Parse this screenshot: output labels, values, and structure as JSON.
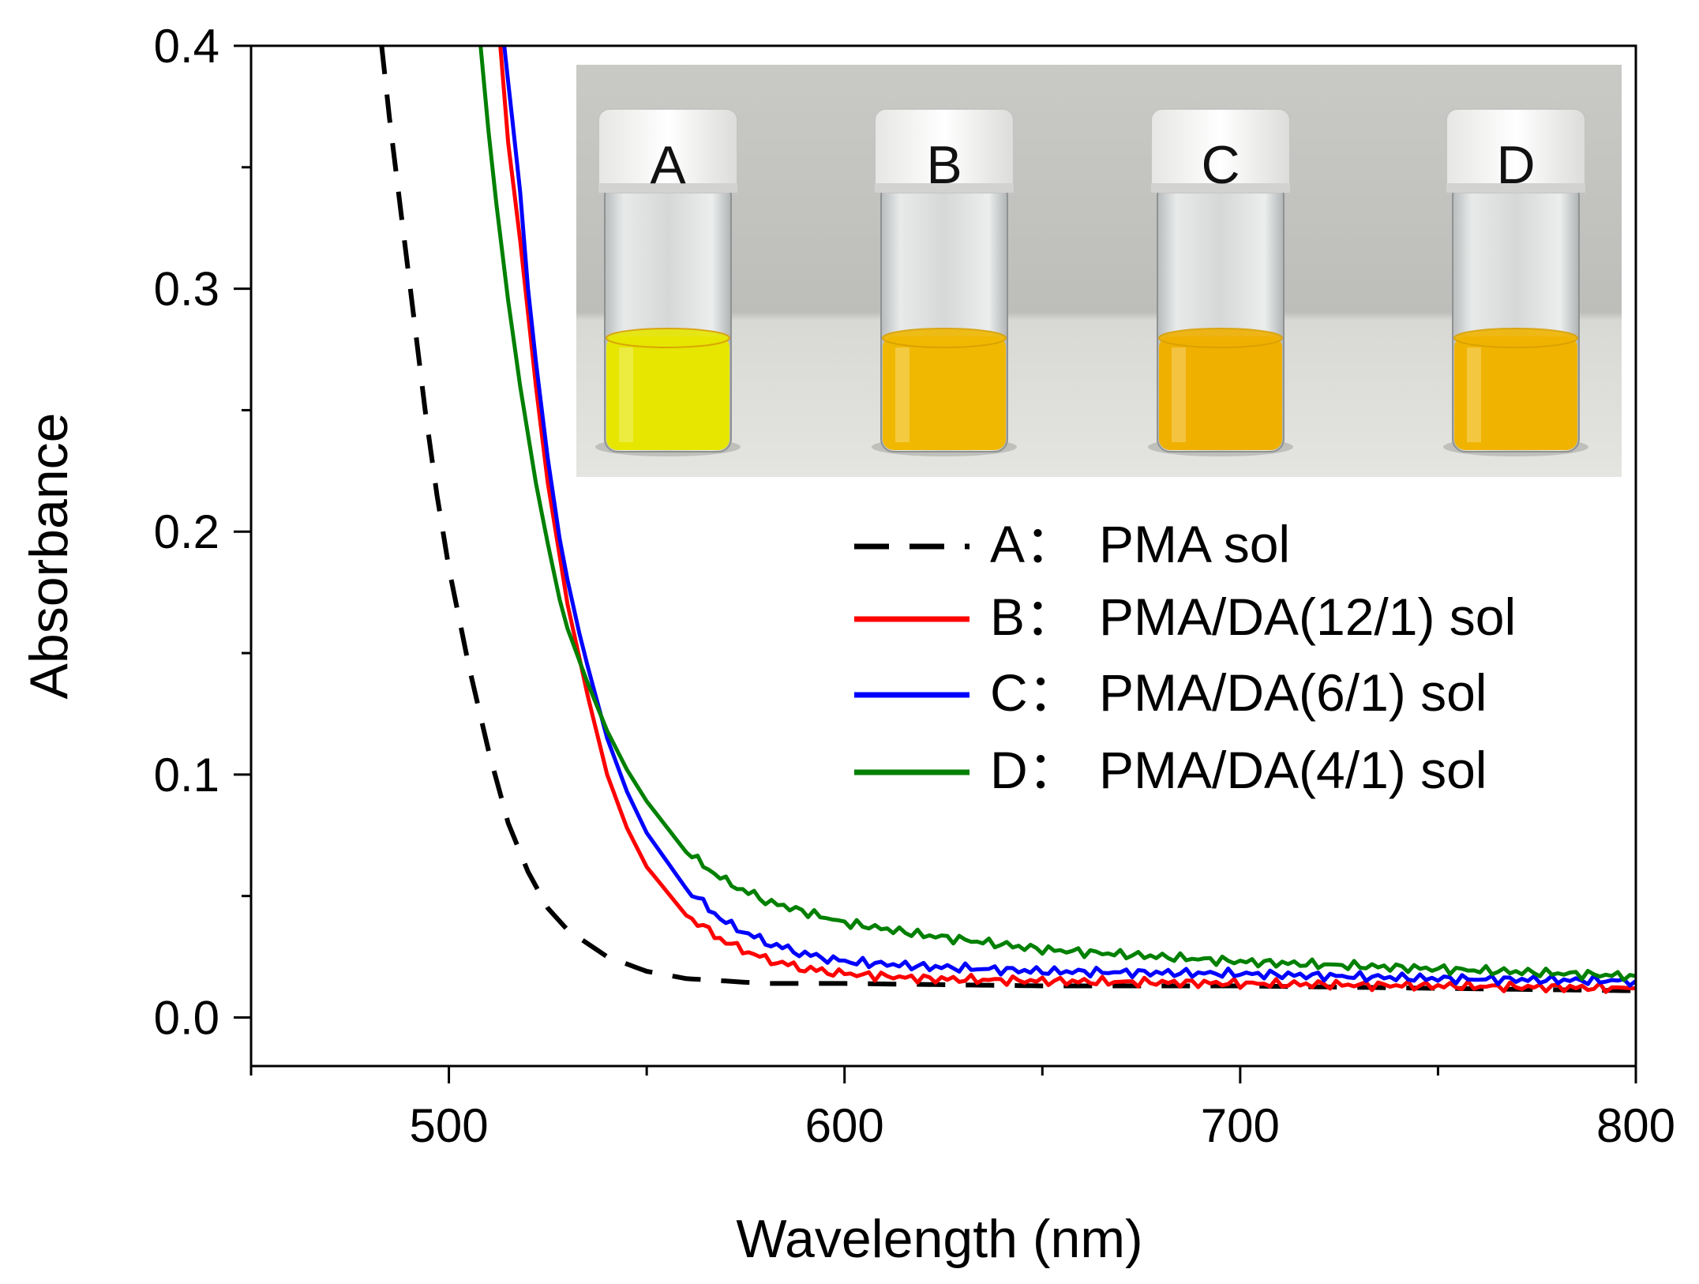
{
  "chart_data": {
    "type": "line",
    "title": "",
    "xlabel": "Wavelength (nm)",
    "ylabel": "Absorbance",
    "xlim": [
      450,
      800
    ],
    "ylim": [
      -0.02,
      0.4
    ],
    "x_ticks": [
      500,
      600,
      700,
      800
    ],
    "x_tick_labels": [
      "500",
      "600",
      "700",
      "800"
    ],
    "x_minor_ticks": [
      450,
      550,
      650,
      750
    ],
    "y_ticks": [
      0.0,
      0.1,
      0.2,
      0.3,
      0.4
    ],
    "y_tick_labels": [
      "0.0",
      "0.1",
      "0.2",
      "0.3",
      "0.4"
    ],
    "y_minor_ticks": [
      0.05,
      0.15,
      0.25,
      0.35
    ],
    "grid": false,
    "legend_position": "right",
    "series": [
      {
        "name": "A：PMA sol",
        "letter": "A：",
        "label": "PMA sol",
        "color": "#000000",
        "dashed": true,
        "x": [
          483,
          485,
          488,
          491,
          494,
          497,
          500,
          505,
          510,
          515,
          520,
          525,
          530,
          540,
          550,
          560,
          570,
          580,
          600,
          650,
          700,
          750,
          800
        ],
        "y": [
          0.4,
          0.37,
          0.33,
          0.29,
          0.25,
          0.215,
          0.185,
          0.145,
          0.11,
          0.08,
          0.06,
          0.045,
          0.036,
          0.025,
          0.019,
          0.016,
          0.015,
          0.014,
          0.014,
          0.013,
          0.013,
          0.012,
          0.011
        ]
      },
      {
        "name": "B：PMA/DA(12/1) sol",
        "letter": "B：",
        "label": "PMA/DA(12/1) sol",
        "color": "#ff0000",
        "dashed": false,
        "x": [
          513,
          515,
          518,
          520,
          522,
          525,
          528,
          530,
          533,
          535,
          540,
          545,
          550,
          560,
          570,
          580,
          590,
          600,
          620,
          650,
          700,
          750,
          800
        ],
        "y": [
          0.4,
          0.36,
          0.32,
          0.29,
          0.26,
          0.22,
          0.19,
          0.17,
          0.148,
          0.133,
          0.1,
          0.078,
          0.062,
          0.042,
          0.031,
          0.024,
          0.02,
          0.018,
          0.016,
          0.015,
          0.014,
          0.013,
          0.012
        ]
      },
      {
        "name": "C：PMA/DA(6/1) sol",
        "letter": "C：",
        "label": "PMA/DA(6/1) sol",
        "color": "#0000ff",
        "dashed": false,
        "x": [
          514,
          516,
          518,
          520,
          522,
          525,
          528,
          530,
          533,
          535,
          540,
          545,
          550,
          560,
          570,
          580,
          590,
          600,
          620,
          650,
          700,
          750,
          800
        ],
        "y": [
          0.4,
          0.37,
          0.34,
          0.3,
          0.27,
          0.23,
          0.197,
          0.18,
          0.158,
          0.145,
          0.115,
          0.093,
          0.076,
          0.053,
          0.039,
          0.031,
          0.026,
          0.023,
          0.021,
          0.019,
          0.018,
          0.016,
          0.015
        ]
      },
      {
        "name": "D：PMA/DA(4/1) sol",
        "letter": "D：",
        "label": "PMA/DA(4/1) sol",
        "color": "#008000",
        "dashed": false,
        "x": [
          508,
          510,
          512,
          515,
          518,
          520,
          522,
          525,
          528,
          530,
          535,
          540,
          545,
          550,
          560,
          570,
          580,
          600,
          620,
          650,
          700,
          750,
          800
        ],
        "y": [
          0.4,
          0.365,
          0.335,
          0.295,
          0.26,
          0.24,
          0.22,
          0.195,
          0.172,
          0.16,
          0.138,
          0.118,
          0.102,
          0.089,
          0.068,
          0.056,
          0.048,
          0.039,
          0.034,
          0.028,
          0.023,
          0.02,
          0.017
        ]
      }
    ]
  },
  "inset": {
    "description_letters": [
      "A",
      "B",
      "C",
      "D"
    ],
    "liquid_colors": [
      "#e6e600",
      "#f0b800",
      "#f0b000",
      "#f0b400"
    ]
  }
}
